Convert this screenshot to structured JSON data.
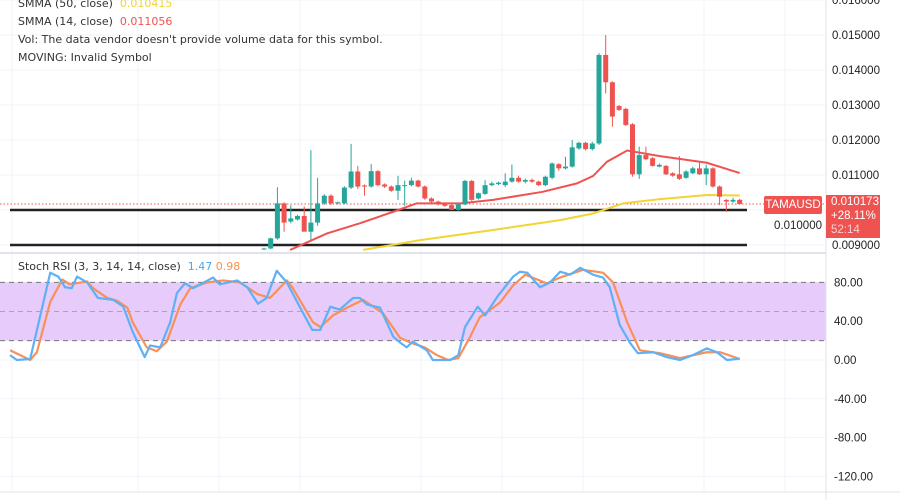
{
  "legend": {
    "smma50": {
      "label": "SMMA (50, close)",
      "value": "0.010415",
      "color": "#f2d434"
    },
    "smma14": {
      "label": "SMMA (14, close)",
      "value": "0.011056",
      "color": "#ef5350"
    },
    "vol_note": "Vol: The data vendor doesn't provide volume data for this symbol.",
    "moving_note": "MOVING: Invalid Symbol"
  },
  "symbol_tag": "TAMAUSD",
  "price_tag": {
    "price": "0.010173",
    "change": "+28.11%",
    "countdown": "52:14"
  },
  "stoch_legend": {
    "label": "Stoch RSI (3, 3, 14, 14, close)",
    "k_value": "1.47",
    "d_value": "0.98",
    "k_color": "#5fb0f5",
    "d_color": "#f7915a"
  },
  "colors": {
    "up": "#26a69a",
    "down": "#ef5350",
    "band_fill": "#e7cbfb"
  },
  "chart_data": [
    {
      "type": "candlestick",
      "ylim": [
        0.0088,
        0.0161
      ],
      "y_ticks": [
        "0.016000",
        "0.015000",
        "0.014000",
        "0.013000",
        "0.012000",
        "0.011000",
        "0.010000",
        "0.009000"
      ],
      "support_lines": [
        0.01,
        0.009
      ],
      "last_price": 0.010173,
      "candles_ohlc": [
        [
          0.00888,
          0.00892,
          0.00886,
          0.0089
        ],
        [
          0.0089,
          0.00921,
          0.00888,
          0.00919
        ],
        [
          0.00919,
          0.01065,
          0.00915,
          0.01019
        ],
        [
          0.01019,
          0.01022,
          0.00938,
          0.00964
        ],
        [
          0.00967,
          0.01014,
          0.00962,
          0.00976
        ],
        [
          0.00973,
          0.00986,
          0.0097,
          0.00983
        ],
        [
          0.00983,
          0.0101,
          0.0094,
          0.00938
        ],
        [
          0.00938,
          0.01171,
          0.00914,
          0.00964
        ],
        [
          0.00964,
          0.01092,
          0.00955,
          0.01019
        ],
        [
          0.01019,
          0.01045,
          0.01015,
          0.01041
        ],
        [
          0.01041,
          0.01045,
          0.01015,
          0.01019
        ],
        [
          0.01019,
          0.01024,
          0.01016,
          0.01022
        ],
        [
          0.01019,
          0.01068,
          0.01016,
          0.01064
        ],
        [
          0.01064,
          0.01189,
          0.0106,
          0.0111
        ],
        [
          0.0111,
          0.01126,
          0.0106,
          0.01067
        ],
        [
          0.0107,
          0.01073,
          0.01041,
          0.01067
        ],
        [
          0.01067,
          0.01131,
          0.01064,
          0.01111
        ],
        [
          0.01111,
          0.01114,
          0.01068,
          0.01071
        ],
        [
          0.01073,
          0.01076,
          0.01063,
          0.01067
        ],
        [
          0.01067,
          0.0107,
          0.01052,
          0.01055
        ],
        [
          0.01055,
          0.01098,
          0.01029,
          0.01071
        ],
        [
          0.01069,
          0.01084,
          0.01012,
          0.01071
        ],
        [
          0.01071,
          0.01092,
          0.01068,
          0.01084
        ],
        [
          0.01084,
          0.01087,
          0.01064,
          0.01067
        ],
        [
          0.01067,
          0.0107,
          0.01029,
          0.01033
        ],
        [
          0.01033,
          0.01036,
          0.01019,
          0.01024
        ],
        [
          0.01024,
          0.01027,
          0.01013,
          0.01016
        ],
        [
          0.01019,
          0.01022,
          0.01009,
          0.01012
        ],
        [
          0.01014,
          0.01017,
          0.01,
          0.01
        ],
        [
          0.01,
          0.01019,
          0.00998,
          0.01016
        ],
        [
          0.01016,
          0.01086,
          0.01014,
          0.01083
        ],
        [
          0.01083,
          0.01086,
          0.01026,
          0.01029
        ],
        [
          0.01033,
          0.0105,
          0.0103,
          0.01048
        ],
        [
          0.01046,
          0.01086,
          0.01043,
          0.01071
        ],
        [
          0.01071,
          0.01081,
          0.01068,
          0.01076
        ],
        [
          0.01074,
          0.01081,
          0.01071,
          0.01078
        ],
        [
          0.01071,
          0.01105,
          0.01066,
          0.01081
        ],
        [
          0.01081,
          0.0113,
          0.01078,
          0.01092
        ],
        [
          0.01092,
          0.01098,
          0.01078,
          0.01081
        ],
        [
          0.01081,
          0.0109,
          0.01076,
          0.01086
        ],
        [
          0.01086,
          0.0109,
          0.01078,
          0.01081
        ],
        [
          0.01081,
          0.01084,
          0.01068,
          0.01071
        ],
        [
          0.01071,
          0.01098,
          0.01068,
          0.01095
        ],
        [
          0.01092,
          0.01136,
          0.01088,
          0.01133
        ],
        [
          0.01131,
          0.01134,
          0.01112,
          0.01119
        ],
        [
          0.01119,
          0.01152,
          0.01116,
          0.01124
        ],
        [
          0.01124,
          0.012,
          0.01121,
          0.01179
        ],
        [
          0.01176,
          0.01195,
          0.01172,
          0.01192
        ],
        [
          0.01192,
          0.01195,
          0.0117,
          0.01174
        ],
        [
          0.01174,
          0.01195,
          0.0117,
          0.0119
        ],
        [
          0.0119,
          0.01448,
          0.01186,
          0.01443
        ],
        [
          0.01443,
          0.015,
          0.01333,
          0.01365
        ],
        [
          0.01365,
          0.01368,
          0.01238,
          0.01267
        ],
        [
          0.01297,
          0.013,
          0.01283,
          0.01286
        ],
        [
          0.01289,
          0.01292,
          0.0124,
          0.01243
        ],
        [
          0.01245,
          0.01248,
          0.01095,
          0.01102
        ],
        [
          0.01102,
          0.01181,
          0.01089,
          0.01157
        ],
        [
          0.01157,
          0.01181,
          0.01142,
          0.01145
        ],
        [
          0.01148,
          0.01151,
          0.01124,
          0.01126
        ],
        [
          0.01124,
          0.01133,
          0.01122,
          0.01129
        ],
        [
          0.01126,
          0.01129,
          0.011,
          0.01102
        ],
        [
          0.01105,
          0.01108,
          0.01095,
          0.01098
        ],
        [
          0.01102,
          0.01154,
          0.01086,
          0.01089
        ],
        [
          0.01092,
          0.01114,
          0.01089,
          0.0111
        ],
        [
          0.01105,
          0.01124,
          0.01102,
          0.01119
        ],
        [
          0.01119,
          0.01135,
          0.011,
          0.01102
        ],
        [
          0.01102,
          0.0113,
          0.01071,
          0.01119
        ],
        [
          0.01119,
          0.01122,
          0.01064,
          0.01067
        ],
        [
          0.01067,
          0.0107,
          0.01014,
          0.01038
        ],
        [
          0.01029,
          0.01031,
          0.00995,
          0.01024
        ],
        [
          0.01024,
          0.01035,
          0.0102,
          0.01029
        ],
        [
          0.01029,
          0.01032,
          0.01015,
          0.010173
        ]
      ],
      "series": [
        {
          "name": "SMMA (14, close)",
          "points": [
            [
              3.9,
              0.00886
            ],
            [
              9.4,
              0.00933
            ],
            [
              14.3,
              0.00962
            ],
            [
              19.3,
              0.00995
            ],
            [
              22.8,
              0.01019
            ],
            [
              29.3,
              0.01019
            ],
            [
              34.2,
              0.01029
            ],
            [
              41.6,
              0.01052
            ],
            [
              46.7,
              0.01076
            ],
            [
              49.1,
              0.01097
            ],
            [
              51.2,
              0.01138
            ],
            [
              54.2,
              0.0117
            ],
            [
              59.1,
              0.01154
            ],
            [
              66.1,
              0.01135
            ],
            [
              71,
              0.011056
            ]
          ]
        },
        {
          "name": "SMMA (50, close)",
          "points": [
            [
              14.8,
              0.00886
            ],
            [
              23.3,
              0.00914
            ],
            [
              34.2,
              0.00943
            ],
            [
              44.2,
              0.00971
            ],
            [
              49.1,
              0.0099
            ],
            [
              53.6,
              0.01019
            ],
            [
              59.1,
              0.01031
            ],
            [
              66.1,
              0.01043
            ],
            [
              71,
              0.010415
            ]
          ]
        }
      ]
    },
    {
      "type": "line",
      "ylim": [
        -125,
        105
      ],
      "y_ticks": [
        "80.00",
        "40.00",
        "0.00",
        "-40.00",
        "-80.00",
        "-120.00"
      ],
      "band": [
        20,
        80
      ],
      "mid_line": 50,
      "series": [
        {
          "name": "K",
          "points": [
            [
              -37.9,
              5
            ],
            [
              -36.9,
              0
            ],
            [
              -34.9,
              1
            ],
            [
              -31.9,
              90
            ],
            [
              -30.7,
              86
            ],
            [
              -29.7,
              75
            ],
            [
              -28.7,
              74
            ],
            [
              -27.9,
              86
            ],
            [
              -26.4,
              80
            ],
            [
              -24.8,
              64
            ],
            [
              -22.5,
              62
            ],
            [
              -21.0,
              55
            ],
            [
              -19.6,
              29
            ],
            [
              -17.8,
              3
            ],
            [
              -17.0,
              15
            ],
            [
              -15.5,
              13
            ],
            [
              -14.0,
              39
            ],
            [
              -13.0,
              69
            ],
            [
              -11.8,
              79
            ],
            [
              -10.6,
              74
            ],
            [
              -7.6,
              85
            ],
            [
              -6.6,
              78
            ],
            [
              -4.0,
              82
            ],
            [
              -2.5,
              75
            ],
            [
              -0.9,
              58
            ],
            [
              0.4,
              64
            ],
            [
              1.9,
              92
            ],
            [
              3.4,
              80
            ],
            [
              5.4,
              54
            ],
            [
              7.2,
              31
            ],
            [
              8.4,
              31
            ],
            [
              9.9,
              55
            ],
            [
              11.3,
              52
            ],
            [
              13.3,
              64
            ],
            [
              14.3,
              64
            ],
            [
              15.4,
              57
            ],
            [
              17.3,
              54
            ],
            [
              19.3,
              24
            ],
            [
              20.3,
              18
            ],
            [
              21.3,
              13
            ],
            [
              22.2,
              19
            ],
            [
              24.3,
              10
            ],
            [
              25.2,
              0
            ],
            [
              27.8,
              0
            ],
            [
              29.0,
              5
            ],
            [
              30.0,
              34
            ],
            [
              31.9,
              55
            ],
            [
              33.0,
              46
            ],
            [
              34.8,
              65
            ],
            [
              37.2,
              86
            ],
            [
              38.2,
              91
            ],
            [
              39.3,
              90
            ],
            [
              41.2,
              75
            ],
            [
              42.7,
              80
            ],
            [
              44.2,
              91
            ],
            [
              45.7,
              88
            ],
            [
              47.2,
              95
            ],
            [
              49.1,
              88
            ],
            [
              50.6,
              85
            ],
            [
              51.6,
              75
            ],
            [
              53.1,
              36
            ],
            [
              54.6,
              18
            ],
            [
              55.8,
              7
            ],
            [
              58.1,
              8
            ],
            [
              60.1,
              3
            ],
            [
              62.1,
              0
            ],
            [
              64.0,
              5
            ],
            [
              66.1,
              12
            ],
            [
              67.6,
              8
            ],
            [
              69.1,
              0
            ],
            [
              70.6,
              1
            ],
            [
              71,
              1.47
            ]
          ]
        },
        {
          "name": "D",
          "points": [
            [
              -37.9,
              10
            ],
            [
              -34.9,
              0
            ],
            [
              -33.9,
              8
            ],
            [
              -31.9,
              60
            ],
            [
              -30.1,
              83
            ],
            [
              -29.0,
              78
            ],
            [
              -26.4,
              81
            ],
            [
              -25.5,
              74
            ],
            [
              -23.4,
              64
            ],
            [
              -21.9,
              61
            ],
            [
              -20.4,
              54
            ],
            [
              -19.6,
              39
            ],
            [
              -17.5,
              13
            ],
            [
              -16.0,
              9
            ],
            [
              -14.5,
              19
            ],
            [
              -12.5,
              57
            ],
            [
              -11.0,
              74
            ],
            [
              -8.5,
              80
            ],
            [
              -6.1,
              82
            ],
            [
              -3.6,
              80
            ],
            [
              -1.0,
              68
            ],
            [
              0.9,
              64
            ],
            [
              3.4,
              82
            ],
            [
              4.3,
              74
            ],
            [
              7.3,
              39
            ],
            [
              8.4,
              34
            ],
            [
              10.3,
              46
            ],
            [
              12.4,
              54
            ],
            [
              14.8,
              62
            ],
            [
              17.8,
              48
            ],
            [
              20.3,
              23
            ],
            [
              21.8,
              18
            ],
            [
              24.0,
              13
            ],
            [
              25.8,
              5
            ],
            [
              27.5,
              0
            ],
            [
              29.0,
              2
            ],
            [
              30.7,
              23
            ],
            [
              32.2,
              44
            ],
            [
              35.2,
              59
            ],
            [
              37.2,
              77
            ],
            [
              39.0,
              88
            ],
            [
              42.2,
              79
            ],
            [
              44.2,
              85
            ],
            [
              47.6,
              93
            ],
            [
              50.6,
              90
            ],
            [
              52.1,
              80
            ],
            [
              54.2,
              39
            ],
            [
              56.1,
              10
            ],
            [
              59.1,
              7
            ],
            [
              62.1,
              2
            ],
            [
              66.1,
              8
            ],
            [
              68.1,
              8
            ],
            [
              70.6,
              2
            ],
            [
              71,
              0.98
            ]
          ]
        }
      ]
    }
  ]
}
